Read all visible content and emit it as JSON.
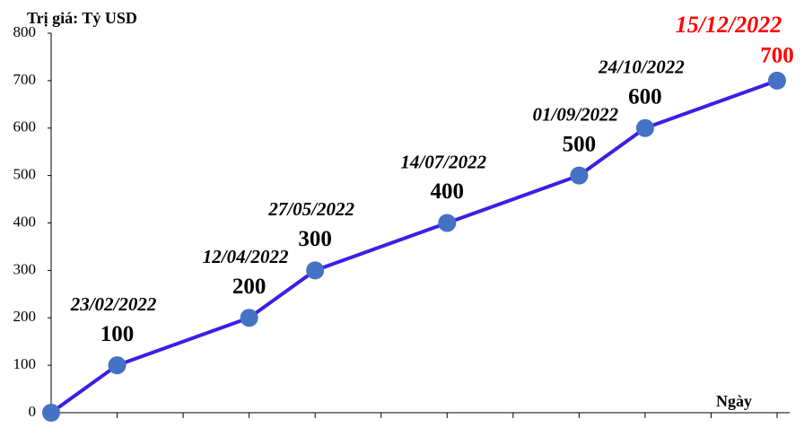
{
  "chart_data": {
    "type": "line",
    "y_axis_title": "Trị giá: Tỷ USD",
    "x_axis_title": "Ngày",
    "x": [
      0,
      1,
      3,
      4,
      6,
      8,
      9,
      11
    ],
    "xlim": [
      0,
      11
    ],
    "date_labels": [
      null,
      "23/02/2022",
      "12/04/2022",
      "27/05/2022",
      "14/07/2022",
      "01/09/2022",
      "24/10/2022",
      "15/12/2022"
    ],
    "series": [
      {
        "color": "#3b1fe6",
        "marker_color": "#4472c4",
        "values": [
          0,
          100,
          200,
          300,
          400,
          500,
          600,
          700
        ]
      }
    ],
    "ylim": [
      0,
      800
    ],
    "yticks": [
      0,
      100,
      200,
      300,
      400,
      500,
      600,
      700,
      800
    ],
    "highlight_last": true,
    "highlight_color": "#ff0000"
  }
}
